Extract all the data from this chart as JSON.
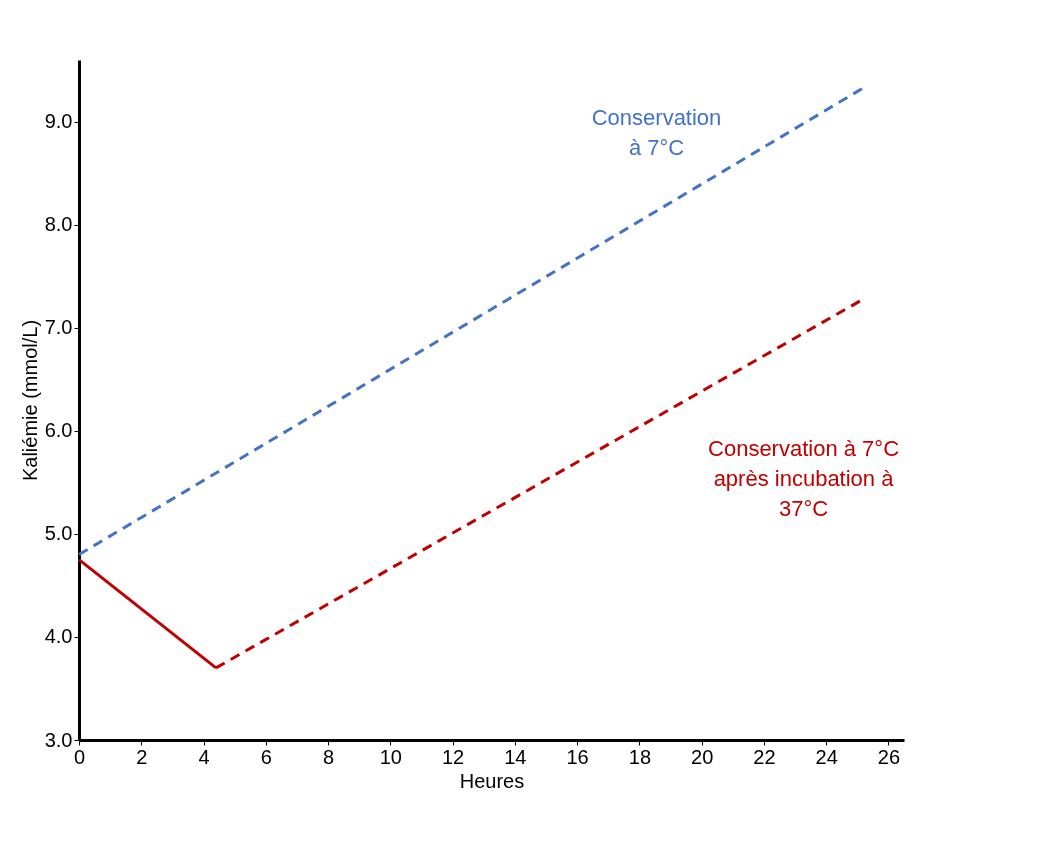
{
  "chart_data": {
    "type": "line",
    "xlabel": "Heures",
    "ylabel": "Kaliémie (mmol/L)",
    "xlim": [
      0,
      26.5
    ],
    "xticks": [
      0,
      2,
      4,
      6,
      8,
      10,
      12,
      14,
      16,
      18,
      20,
      22,
      24,
      26
    ],
    "ylim": [
      3,
      9.6
    ],
    "yticks": [
      {
        "value": 3,
        "label": "3.0"
      },
      {
        "value": 4,
        "label": "4.0"
      },
      {
        "value": 5,
        "label": "5.0"
      },
      {
        "value": 6,
        "label": "6.0"
      },
      {
        "value": 7,
        "label": "7.0"
      },
      {
        "value": 8,
        "label": "8.0"
      },
      {
        "value": 9,
        "label": "9.0"
      }
    ],
    "grid": false,
    "marker": "none",
    "series": [
      {
        "name": "Conservation à 7°C",
        "color": "#4472c4",
        "line_style": "dashed",
        "x": [
          0,
          25.2
        ],
        "values": [
          4.8,
          9.33
        ]
      },
      {
        "color": "#c00000",
        "line_style": "solid",
        "x": [
          0,
          4.4
        ],
        "values": [
          4.75,
          3.7
        ]
      },
      {
        "name": "Conservation à 7°C après incubation à 37°C",
        "color": "#c00000",
        "line_style": "dashed",
        "x": [
          4.4,
          25.2
        ],
        "values": [
          3.7,
          7.28
        ]
      }
    ]
  }
}
